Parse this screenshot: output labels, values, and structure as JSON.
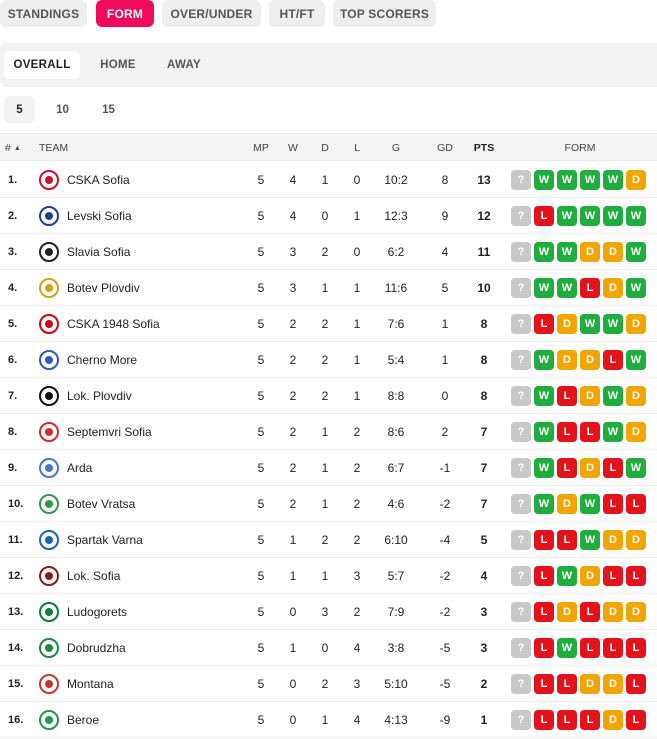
{
  "top_tabs": [
    {
      "label": "STANDINGS",
      "active": false
    },
    {
      "label": "FORM",
      "active": true
    },
    {
      "label": "OVER/UNDER",
      "active": false
    },
    {
      "label": "HT/FT",
      "active": false
    },
    {
      "label": "TOP SCORERS",
      "active": false
    }
  ],
  "sub_tabs": [
    {
      "label": "OVERALL",
      "active": true
    },
    {
      "label": "HOME",
      "active": false
    },
    {
      "label": "AWAY",
      "active": false
    }
  ],
  "count_tabs": [
    {
      "label": "5",
      "active": true
    },
    {
      "label": "10",
      "active": false
    },
    {
      "label": "15",
      "active": false
    }
  ],
  "columns": {
    "rank": "#",
    "team": "TEAM",
    "mp": "MP",
    "w": "W",
    "d": "D",
    "l": "L",
    "g": "G",
    "gd": "GD",
    "pts": "PTS",
    "form": "FORM"
  },
  "colors": {
    "accent": "#ef0a5c",
    "win": "#1fae3e",
    "draw": "#f2a400",
    "loss": "#e3121b",
    "unknown": "#c9c9c9"
  },
  "rows": [
    {
      "rank": "1.",
      "team": "CSKA Sofia",
      "mp": "5",
      "w": "4",
      "d": "1",
      "l": "0",
      "g": "10:2",
      "gd": "8",
      "pts": "13",
      "form": [
        "?",
        "W",
        "W",
        "W",
        "W",
        "D"
      ],
      "logo_color": "#c8102e"
    },
    {
      "rank": "2.",
      "team": "Levski Sofia",
      "mp": "5",
      "w": "4",
      "d": "0",
      "l": "1",
      "g": "12:3",
      "gd": "9",
      "pts": "12",
      "form": [
        "?",
        "L",
        "W",
        "W",
        "W",
        "W"
      ],
      "logo_color": "#1c3f94"
    },
    {
      "rank": "3.",
      "team": "Slavia Sofia",
      "mp": "5",
      "w": "3",
      "d": "2",
      "l": "0",
      "g": "6:2",
      "gd": "4",
      "pts": "11",
      "form": [
        "?",
        "W",
        "W",
        "D",
        "D",
        "W"
      ],
      "logo_color": "#222222"
    },
    {
      "rank": "4.",
      "team": "Botev Plovdiv",
      "mp": "5",
      "w": "3",
      "d": "1",
      "l": "1",
      "g": "11:6",
      "gd": "5",
      "pts": "10",
      "form": [
        "?",
        "W",
        "W",
        "L",
        "D",
        "W"
      ],
      "logo_color": "#d4a017"
    },
    {
      "rank": "5.",
      "team": "CSKA 1948 Sofia",
      "mp": "5",
      "w": "2",
      "d": "2",
      "l": "1",
      "g": "7:6",
      "gd": "1",
      "pts": "8",
      "form": [
        "?",
        "L",
        "D",
        "W",
        "W",
        "D"
      ],
      "logo_color": "#d0021b"
    },
    {
      "rank": "6.",
      "team": "Cherno More",
      "mp": "5",
      "w": "2",
      "d": "2",
      "l": "1",
      "g": "5:4",
      "gd": "1",
      "pts": "8",
      "form": [
        "?",
        "W",
        "D",
        "D",
        "L",
        "W"
      ],
      "logo_color": "#2b5db8"
    },
    {
      "rank": "7.",
      "team": "Lok. Plovdiv",
      "mp": "5",
      "w": "2",
      "d": "2",
      "l": "1",
      "g": "8:8",
      "gd": "0",
      "pts": "8",
      "form": [
        "?",
        "W",
        "L",
        "D",
        "W",
        "D"
      ],
      "logo_color": "#111111"
    },
    {
      "rank": "8.",
      "team": "Septemvri Sofia",
      "mp": "5",
      "w": "2",
      "d": "1",
      "l": "2",
      "g": "8:6",
      "gd": "2",
      "pts": "7",
      "form": [
        "?",
        "W",
        "L",
        "L",
        "W",
        "D"
      ],
      "logo_color": "#d62a2a"
    },
    {
      "rank": "9.",
      "team": "Arda",
      "mp": "5",
      "w": "2",
      "d": "1",
      "l": "2",
      "g": "6:7",
      "gd": "-1",
      "pts": "7",
      "form": [
        "?",
        "W",
        "L",
        "D",
        "L",
        "W"
      ],
      "logo_color": "#4a78c8"
    },
    {
      "rank": "10.",
      "team": "Botev Vratsa",
      "mp": "5",
      "w": "2",
      "d": "1",
      "l": "2",
      "g": "4:6",
      "gd": "-2",
      "pts": "7",
      "form": [
        "?",
        "W",
        "D",
        "W",
        "L",
        "L"
      ],
      "logo_color": "#2e9b4a"
    },
    {
      "rank": "11.",
      "team": "Spartak Varna",
      "mp": "5",
      "w": "1",
      "d": "2",
      "l": "2",
      "g": "6:10",
      "gd": "-4",
      "pts": "5",
      "form": [
        "?",
        "L",
        "L",
        "W",
        "D",
        "D"
      ],
      "logo_color": "#1d5fbf"
    },
    {
      "rank": "12.",
      "team": "Lok. Sofia",
      "mp": "5",
      "w": "1",
      "d": "1",
      "l": "3",
      "g": "5:7",
      "gd": "-2",
      "pts": "4",
      "form": [
        "?",
        "L",
        "W",
        "D",
        "L",
        "L"
      ],
      "logo_color": "#8b1a1a"
    },
    {
      "rank": "13.",
      "team": "Ludogorets",
      "mp": "5",
      "w": "0",
      "d": "3",
      "l": "2",
      "g": "7:9",
      "gd": "-2",
      "pts": "3",
      "form": [
        "?",
        "L",
        "D",
        "L",
        "D",
        "D"
      ],
      "logo_color": "#0b7a3b"
    },
    {
      "rank": "14.",
      "team": "Dobrudzha",
      "mp": "5",
      "w": "1",
      "d": "0",
      "l": "4",
      "g": "3:8",
      "gd": "-5",
      "pts": "3",
      "form": [
        "?",
        "L",
        "W",
        "L",
        "L",
        "L"
      ],
      "logo_color": "#1e8a3e"
    },
    {
      "rank": "15.",
      "team": "Montana",
      "mp": "5",
      "w": "0",
      "d": "2",
      "l": "3",
      "g": "5:10",
      "gd": "-5",
      "pts": "2",
      "form": [
        "?",
        "L",
        "L",
        "D",
        "D",
        "L"
      ],
      "logo_color": "#c0392b"
    },
    {
      "rank": "16.",
      "team": "Beroe",
      "mp": "5",
      "w": "0",
      "d": "1",
      "l": "4",
      "g": "4:13",
      "gd": "-9",
      "pts": "1",
      "form": [
        "?",
        "L",
        "L",
        "L",
        "D",
        "L"
      ],
      "logo_color": "#1f9a4c"
    }
  ]
}
